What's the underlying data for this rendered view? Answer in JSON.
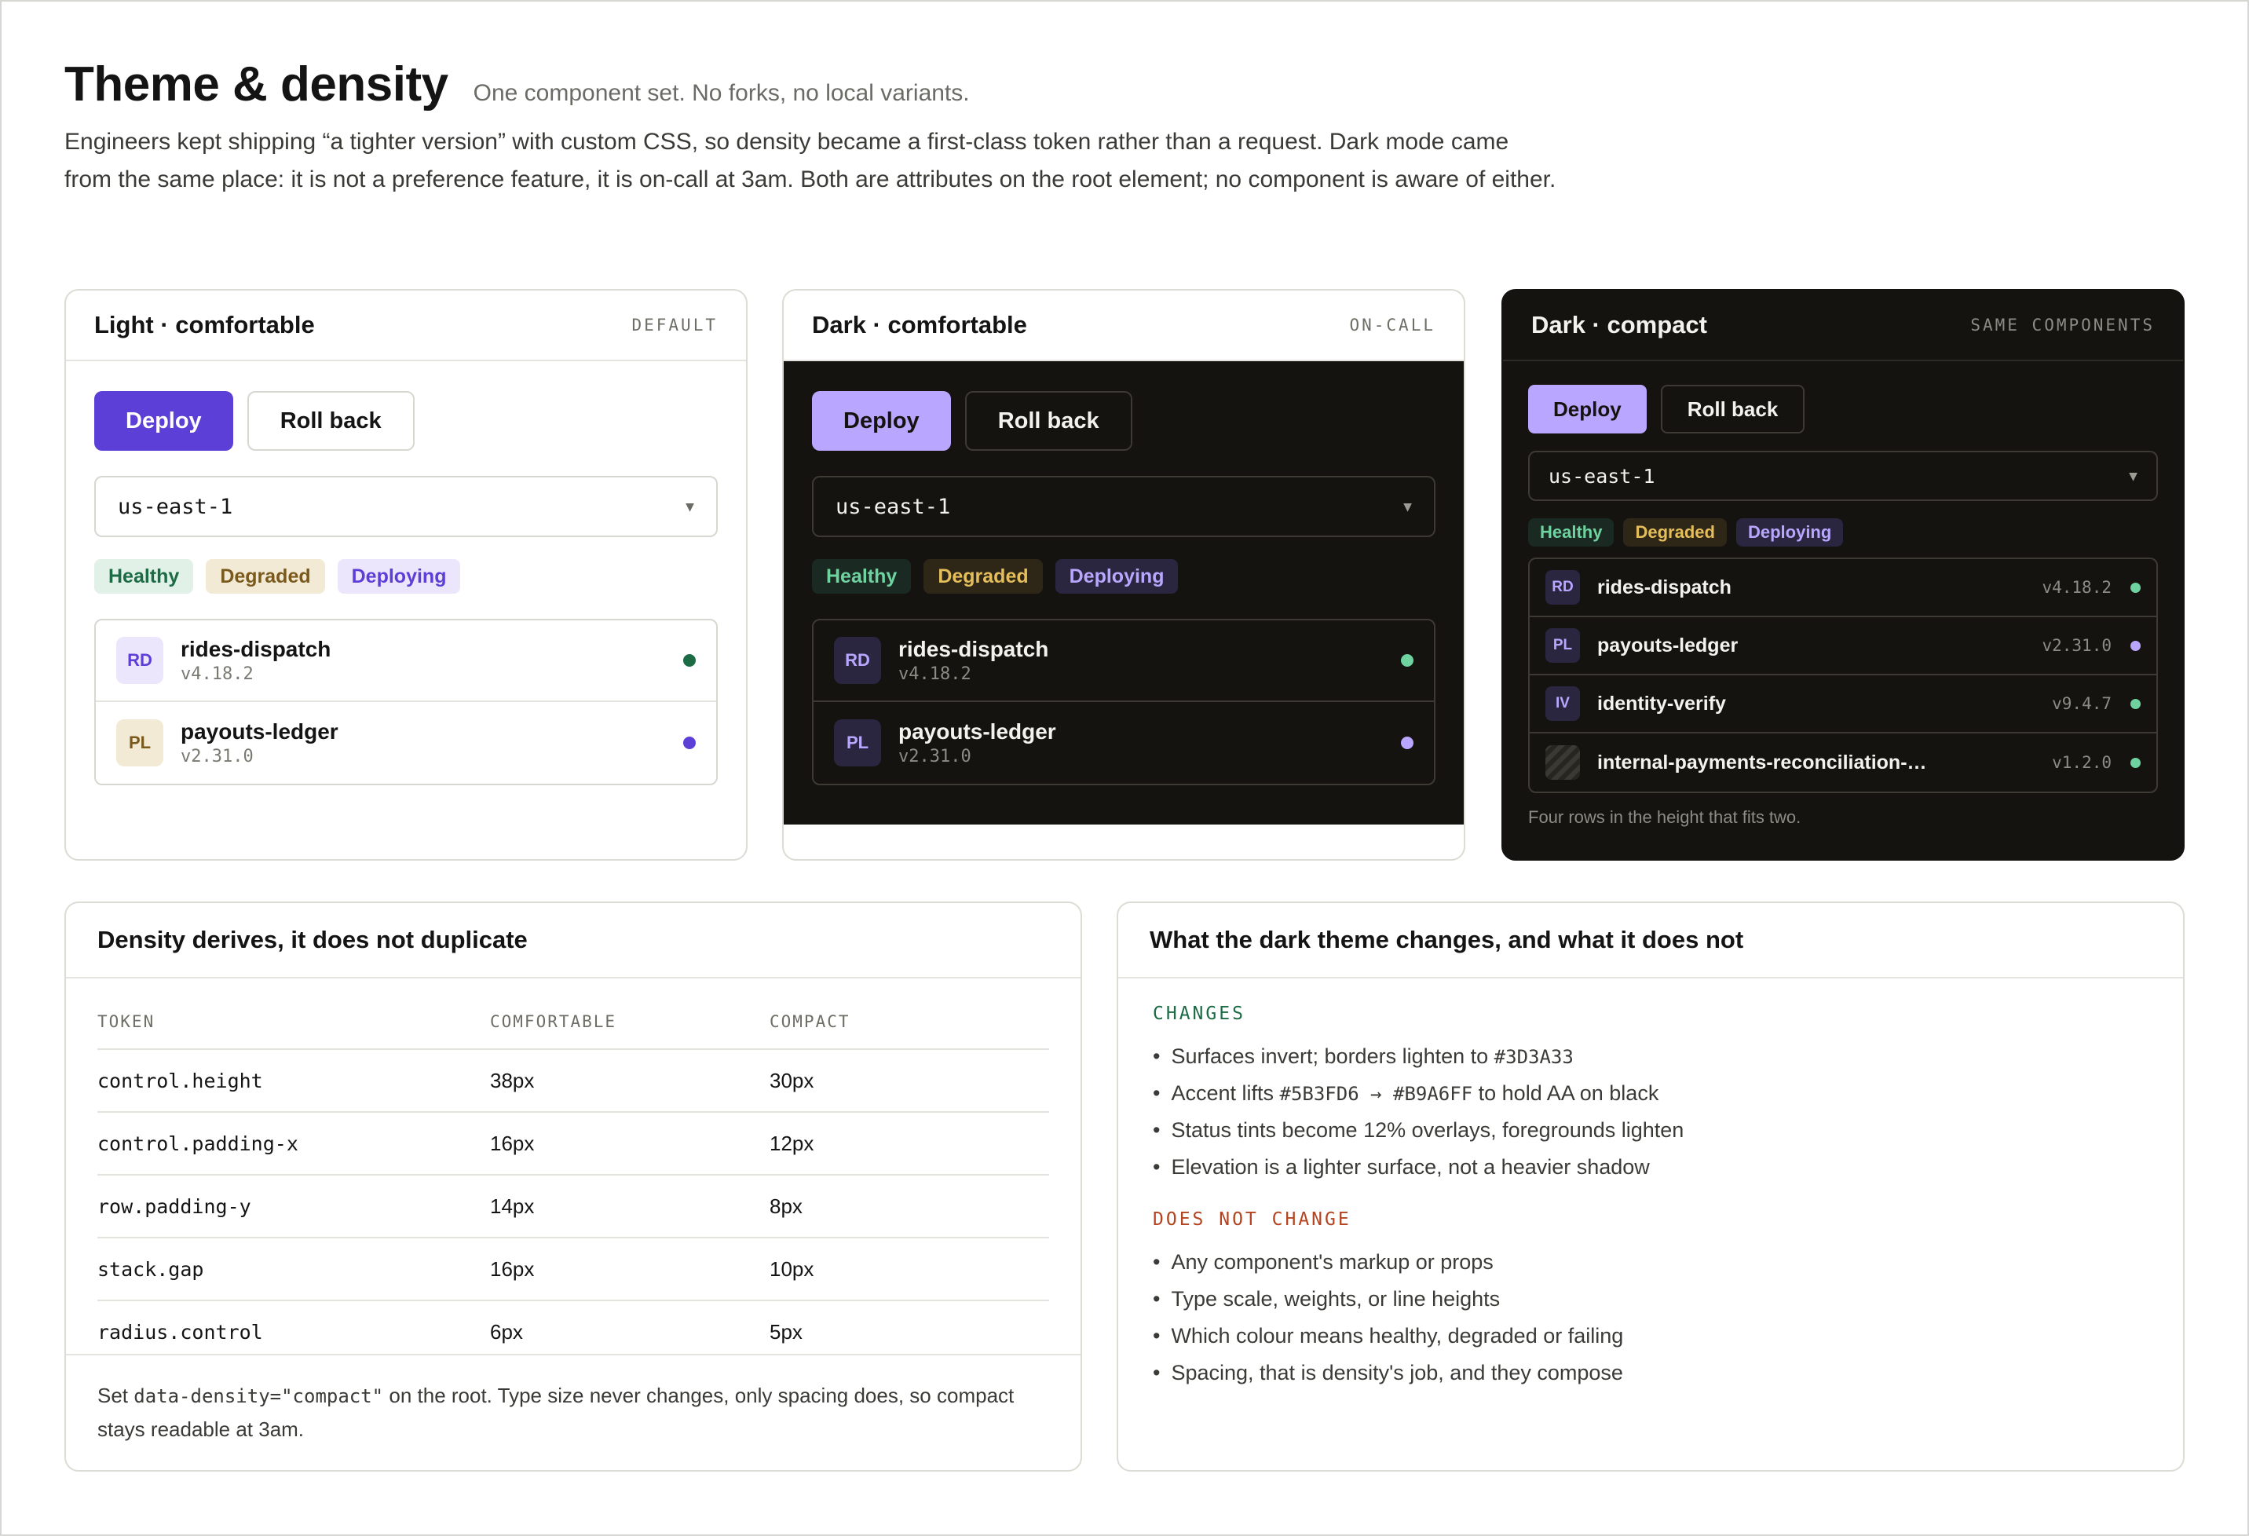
{
  "header": {
    "title": "Theme & density",
    "subtitle": "One component set. No forks, no local variants.",
    "intro": "Engineers kept shipping “a tighter version” with custom CSS, so density became a first-class token rather than a request. Dark mode came from the same place: it is not a preference feature, it is on-call at 3am. Both are attributes on the root element; no component is aware of either."
  },
  "cards": [
    {
      "title": "Light · comfortable",
      "tag": "DEFAULT",
      "primary_button": "Deploy",
      "secondary_button": "Roll back",
      "select_value": "us-east-1",
      "badges": [
        "Healthy",
        "Degraded",
        "Deploying"
      ],
      "rows": [
        {
          "avatar": "RD",
          "name": "rides-dispatch",
          "version": "v4.18.2",
          "status": "healthy"
        },
        {
          "avatar": "PL",
          "name": "payouts-ledger",
          "version": "v2.31.0",
          "status": "deploying"
        }
      ]
    },
    {
      "title": "Dark · comfortable",
      "tag": "ON-CALL",
      "primary_button": "Deploy",
      "secondary_button": "Roll back",
      "select_value": "us-east-1",
      "badges": [
        "Healthy",
        "Degraded",
        "Deploying"
      ],
      "rows": [
        {
          "avatar": "RD",
          "name": "rides-dispatch",
          "version": "v4.18.2",
          "status": "healthy"
        },
        {
          "avatar": "PL",
          "name": "payouts-ledger",
          "version": "v2.31.0",
          "status": "deploying"
        }
      ]
    },
    {
      "title": "Dark · compact",
      "tag": "SAME COMPONENTS",
      "primary_button": "Deploy",
      "secondary_button": "Roll back",
      "select_value": "us-east-1",
      "badges": [
        "Healthy",
        "Degraded",
        "Deploying"
      ],
      "rows": [
        {
          "avatar": "RD",
          "name": "rides-dispatch",
          "version": "v4.18.2",
          "status": "healthy"
        },
        {
          "avatar": "PL",
          "name": "payouts-ledger",
          "version": "v2.31.0",
          "status": "deploying"
        },
        {
          "avatar": "IV",
          "name": "identity-verify",
          "version": "v9.4.7",
          "status": "healthy"
        },
        {
          "avatar": "",
          "name": "internal-payments-reconciliation-…",
          "version": "v1.2.0",
          "status": "healthy"
        }
      ],
      "note": "Four rows in the height that fits two."
    }
  ],
  "density": {
    "title": "Density derives, it does not duplicate",
    "columns": [
      "TOKEN",
      "COMFORTABLE",
      "COMPACT"
    ],
    "rows": [
      [
        "control.height",
        "38px",
        "30px"
      ],
      [
        "control.padding-x",
        "16px",
        "12px"
      ],
      [
        "row.padding-y",
        "14px",
        "8px"
      ],
      [
        "stack.gap",
        "16px",
        "10px"
      ],
      [
        "radius.control",
        "6px",
        "5px"
      ]
    ],
    "footer_pre": "Set ",
    "footer_code": "data-density=\"compact\"",
    "footer_post": " on the root. Type size never changes, only spacing does, so compact stays readable at 3am."
  },
  "dark_theme": {
    "title": "What the dark theme changes, and what it does not",
    "changes_label": "CHANGES",
    "changes": [
      {
        "pre": "Surfaces invert; borders lighten to ",
        "code": "#3D3A33",
        "post": ""
      },
      {
        "pre": "Accent lifts ",
        "code": "#5B3FD6 → #B9A6FF",
        "post": " to hold AA on black"
      },
      {
        "pre": "Status tints become 12% overlays, foregrounds lighten",
        "code": "",
        "post": ""
      },
      {
        "pre": "Elevation is a lighter surface, not a heavier shadow",
        "code": "",
        "post": ""
      }
    ],
    "unchanged_label": "DOES NOT CHANGE",
    "unchanged": [
      "Any component's markup or props",
      "Type scale, weights, or line heights",
      "Which colour means healthy, degraded or failing",
      "Spacing, that is density's job, and they compose"
    ]
  },
  "colors": {
    "accent_light": "#5B3FD6",
    "accent_dark": "#B9A6FF",
    "dark_border": "#3D3A33",
    "dark_surface": "#141310",
    "healthy": "#1B6B45",
    "degraded": "#7A5A1C"
  }
}
